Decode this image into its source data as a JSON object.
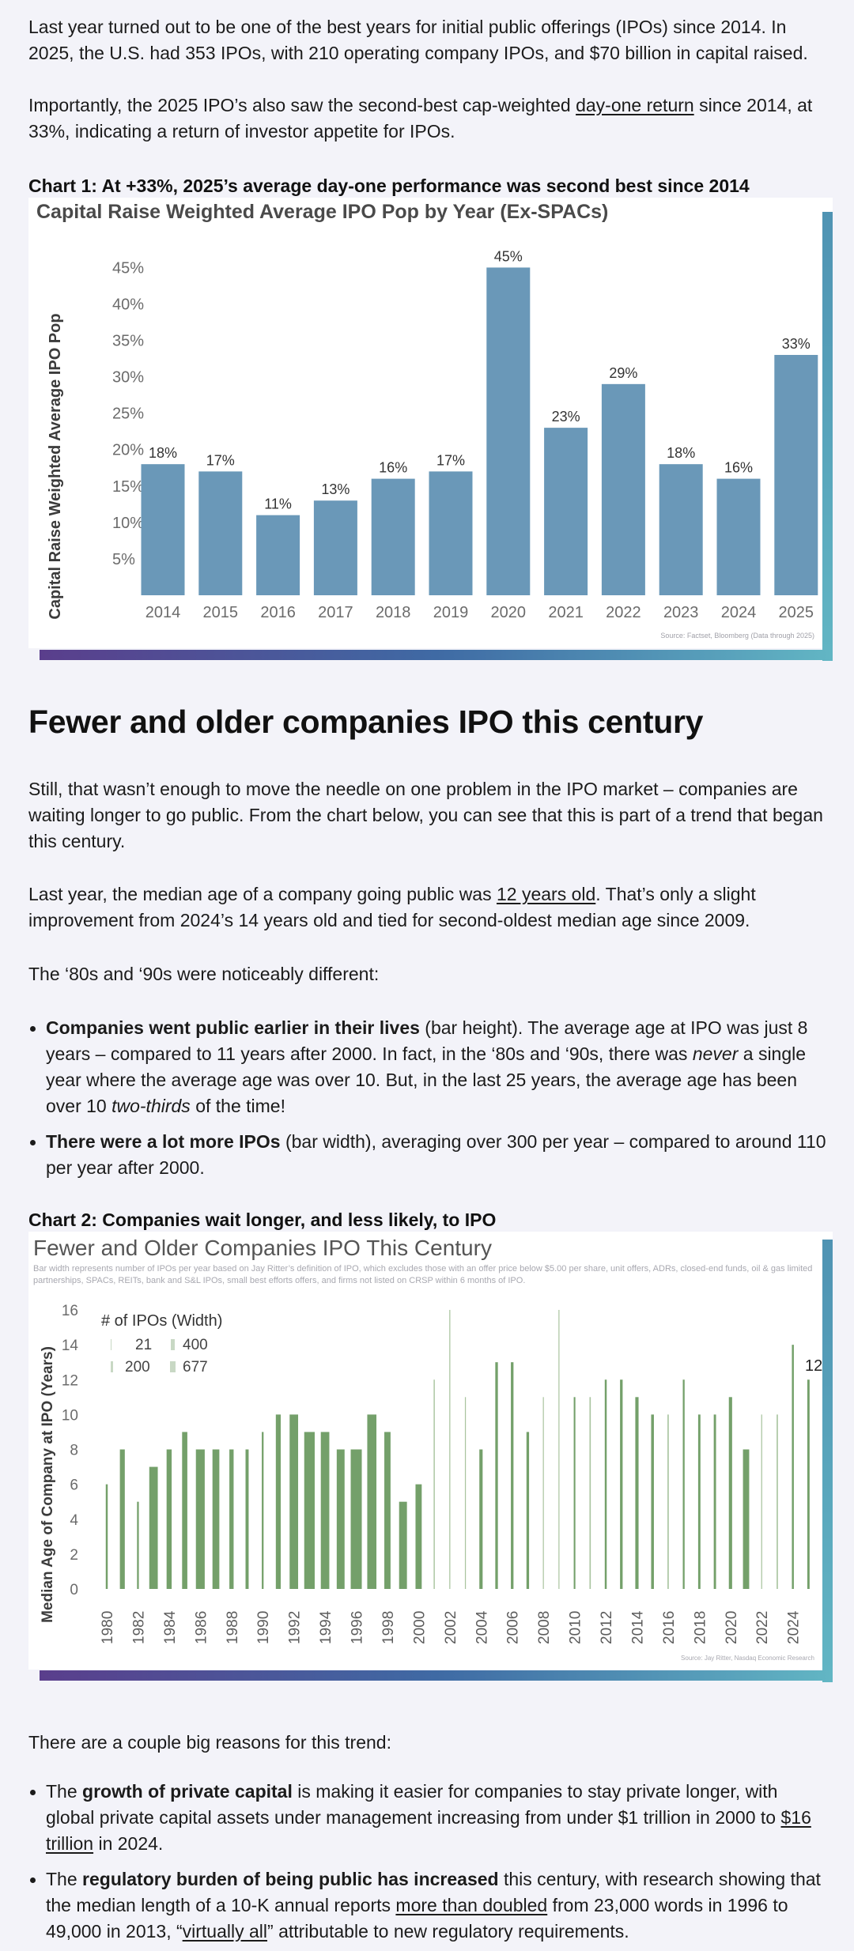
{
  "intro": {
    "p1": "Last year turned out to be one of the best years for initial public offerings (IPOs) since 2014. In 2025, the U.S. had 353 IPOs, with 210 operating company IPOs, and $70 billion in capital raised.",
    "p2_a": "Importantly, the 2025 IPO’s also saw the second-best cap-weighted ",
    "p2_link": "day-one return",
    "p2_b": " since 2014, at 33%, indicating a return of investor appetite for IPOs."
  },
  "chart1_caption": "Chart 1: At +33%, 2025’s average day-one performance was second best since 2014",
  "section2_heading": "Fewer and older companies IPO this century",
  "section2": {
    "p1": "Still, that wasn’t enough to move the needle on one problem in the IPO market – companies are waiting longer to go public. From the chart below, you can see that this is part of a trend that began this century.",
    "p2_a": "Last year, the median age of a company going public was ",
    "p2_link": "12 years old",
    "p2_b": ". That’s only a slight improvement from 2024’s 14 years old and tied for second-oldest median age since 2009.",
    "p3": "The ‘80s and ‘90s were noticeably different:",
    "b1_bold": "Companies went public earlier in their lives",
    "b1_a": " (bar height). The average age at IPO was just 8 years – compared to 11 years after 2000. In fact, in the ‘80s and ‘90s, there was ",
    "b1_em": "never",
    "b1_b": " a single year where the average age was over 10. But, in the last 25 years, the average age has been over 10 ",
    "b1_em2": "two-thirds",
    "b1_c": " of the time!",
    "b2_bold": "There were a lot more IPOs",
    "b2_a": " (bar width), averaging over 300 per year – compared to around 110 per year after 2000."
  },
  "chart2_caption": "Chart 2: Companies wait longer, and less likely, to IPO",
  "section3": {
    "p1": "There are a couple big reasons for this trend:",
    "b1_a": "The ",
    "b1_bold": "growth of private capital",
    "b1_b": " is making it easier for companies to stay private longer, with global private capital assets under management increasing from under $1 trillion in 2000 to ",
    "b1_link": "$16 trillion",
    "b1_c": " in 2024.",
    "b2_a": "The ",
    "b2_bold": "regulatory burden of being public has increased",
    "b2_b": " this century, with research showing that the median length of a 10-K annual reports ",
    "b2_link": "more than doubled",
    "b2_c": " from 23,000 words in 1996 to 49,000 in 2013, “",
    "b2_link2": "virtually all",
    "b2_d": "” attributable to new regulatory requirements."
  },
  "colors": {
    "bar1": "#6a98b8",
    "bar2": "#74a06a",
    "accent_gradient": [
      "#5a3e8c",
      "#3f6aa4",
      "#62b6c4"
    ]
  },
  "chart_data": [
    {
      "type": "bar",
      "title": "Capital Raise Weighted Average IPO Pop by Year (Ex-SPACs)",
      "ylabel": "Capital Raise Weighted Average IPO Pop",
      "xlabel": "",
      "categories": [
        "2014",
        "2015",
        "2016",
        "2017",
        "2018",
        "2019",
        "2020",
        "2021",
        "2022",
        "2023",
        "2024",
        "2025"
      ],
      "values": [
        18,
        17,
        11,
        13,
        16,
        17,
        45,
        23,
        29,
        18,
        16,
        33
      ],
      "value_labels": [
        "18%",
        "17%",
        "11%",
        "13%",
        "16%",
        "17%",
        "45%",
        "23%",
        "29%",
        "18%",
        "16%",
        "33%"
      ],
      "yticks": [
        "5%",
        "10%",
        "15%",
        "20%",
        "25%",
        "30%",
        "35%",
        "40%",
        "45%"
      ],
      "ylim": [
        0,
        47
      ],
      "source": "Source: Factset, Bloomberg (Data through 2025)",
      "grid": false
    },
    {
      "type": "bar",
      "title": "Fewer and Older Companies IPO This Century",
      "subtitle": "Bar width represents number of IPOs per year based on Jay Ritter’s definition of IPO, which excludes those with an offer price below $5.00 per share, unit offers, ADRs, closed-end funds, oil & gas limited partnerships, SPACs, REITs, bank and S&L IPOs, small best efforts offers, and firms not listed on CRSP within 6 months of IPO.",
      "ylabel": "Median Age of Company at IPO (Years)",
      "legend_title": "# of IPOs (Width)",
      "legend_items": [
        "21",
        "400",
        "200",
        "677"
      ],
      "legend_position": "top-left",
      "x": [
        1980,
        1981,
        1982,
        1983,
        1984,
        1985,
        1986,
        1987,
        1988,
        1989,
        1990,
        1991,
        1992,
        1993,
        1994,
        1995,
        1996,
        1997,
        1998,
        1999,
        2000,
        2001,
        2002,
        2003,
        2004,
        2005,
        2006,
        2007,
        2008,
        2009,
        2010,
        2011,
        2012,
        2013,
        2014,
        2015,
        2016,
        2017,
        2018,
        2019,
        2020,
        2021,
        2022,
        2023,
        2024,
        2025
      ],
      "xtick_labels": [
        "1980",
        "1982",
        "1984",
        "1986",
        "1988",
        "1990",
        "1992",
        "1994",
        "1996",
        "1998",
        "2000",
        "2002",
        "2004",
        "2006",
        "2008",
        "2010",
        "2012",
        "2014",
        "2016",
        "2018",
        "2020",
        "2022",
        "2024"
      ],
      "values": [
        6,
        8,
        5,
        7,
        8,
        9,
        8,
        8,
        8,
        8,
        9,
        10,
        10,
        9,
        9,
        8,
        8,
        10,
        9,
        5,
        6,
        12,
        16,
        11,
        8,
        13,
        13,
        9,
        11,
        16,
        11,
        11,
        12,
        12,
        11,
        10,
        10,
        12,
        10,
        10,
        11,
        8,
        10,
        10,
        14,
        12
      ],
      "ipo_counts": [
        120,
        300,
        110,
        520,
        310,
        320,
        540,
        420,
        260,
        190,
        110,
        300,
        520,
        640,
        520,
        480,
        677,
        560,
        380,
        480,
        380,
        70,
        60,
        60,
        200,
        160,
        160,
        160,
        21,
        40,
        100,
        80,
        120,
        160,
        200,
        170,
        80,
        110,
        140,
        140,
        200,
        380,
        60,
        80,
        120,
        140
      ],
      "annotated_value": "12",
      "yticks": [
        "0",
        "2",
        "4",
        "6",
        "8",
        "10",
        "12",
        "14",
        "16"
      ],
      "ylim": [
        0,
        16
      ],
      "source": "Source: Jay Ritter, Nasdaq Economic Research",
      "grid": false
    }
  ]
}
